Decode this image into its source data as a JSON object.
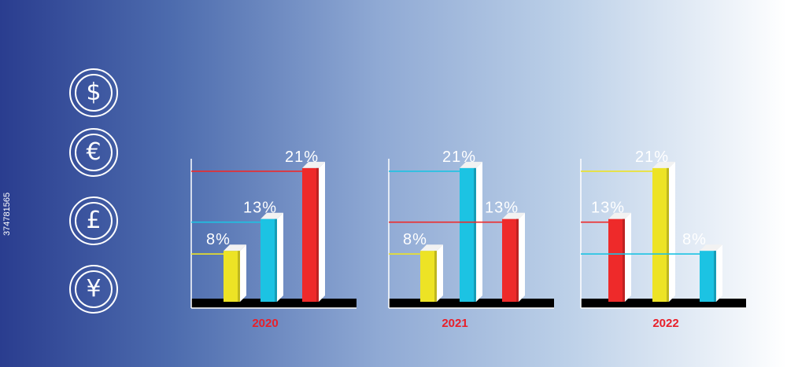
{
  "currency_icons": [
    {
      "name": "dollar-coin-icon",
      "symbol": "$"
    },
    {
      "name": "euro-coin-icon",
      "symbol": "€"
    },
    {
      "name": "pound-coin-icon",
      "symbol": "£"
    },
    {
      "name": "yen-coin-icon",
      "symbol": "¥"
    }
  ],
  "side_id": "374781565",
  "chart_data": [
    {
      "type": "bar",
      "xlabel": "2020",
      "ylim": [
        0,
        25
      ],
      "grid": false,
      "bars": [
        {
          "label": "8%",
          "value": 8,
          "color": "#ede325"
        },
        {
          "label": "13%",
          "value": 13,
          "color": "#1cc3e3"
        },
        {
          "label": "21%",
          "value": 21,
          "color": "#ee2a2a"
        }
      ]
    },
    {
      "type": "bar",
      "xlabel": "2021",
      "ylim": [
        0,
        25
      ],
      "grid": false,
      "bars": [
        {
          "label": "8%",
          "value": 8,
          "color": "#ede325"
        },
        {
          "label": "21%",
          "value": 21,
          "color": "#1cc3e3"
        },
        {
          "label": "13%",
          "value": 13,
          "color": "#ee2a2a"
        }
      ]
    },
    {
      "type": "bar",
      "xlabel": "2022",
      "ylim": [
        0,
        25
      ],
      "grid": false,
      "bars": [
        {
          "label": "13%",
          "value": 13,
          "color": "#ee2a2a"
        },
        {
          "label": "21%",
          "value": 21,
          "color": "#ede325"
        },
        {
          "label": "8%",
          "value": 8,
          "color": "#1cc3e3"
        }
      ]
    }
  ],
  "colors": {
    "year_label": "#e8202a",
    "base_bar": "#000000",
    "axis": "#ffffff"
  }
}
